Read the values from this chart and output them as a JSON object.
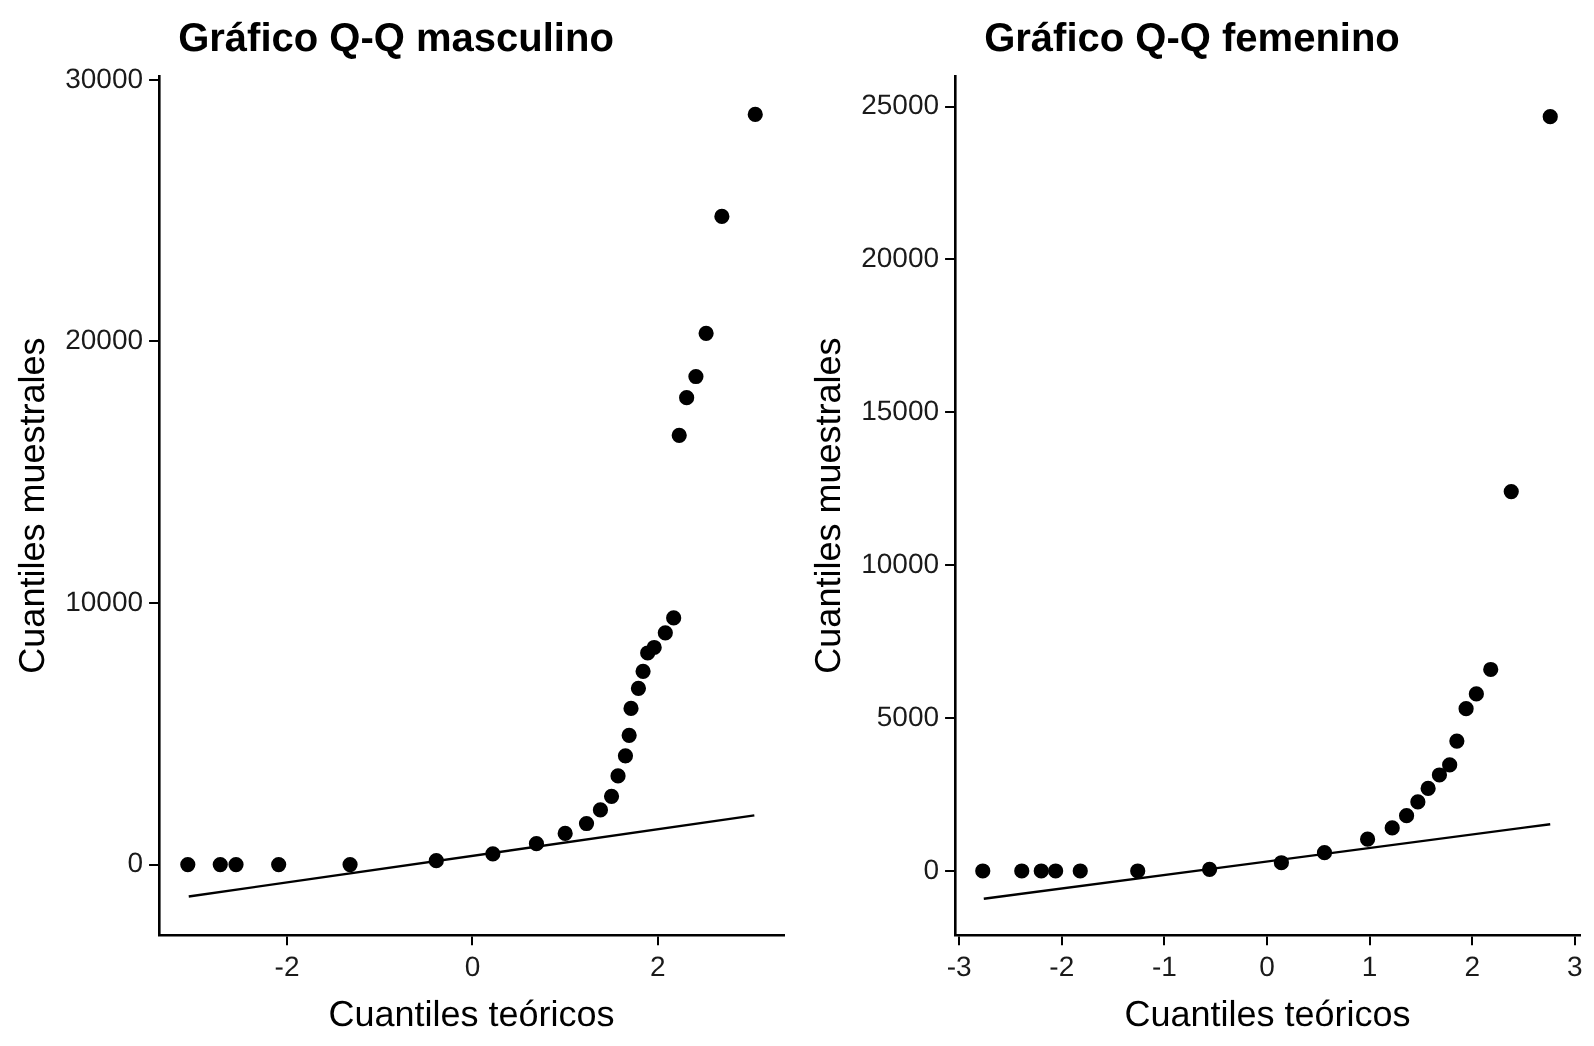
{
  "chart_data": [
    {
      "type": "scatter",
      "title": "Gráfico Q-Q masculino",
      "xlabel": "Cuantiles teóricos",
      "ylabel": "Cuantiles muestrales",
      "xlim": [
        -3.38,
        3.36
      ],
      "xticks": [
        -2,
        0,
        2
      ],
      "ylim": [
        -2700,
        30150
      ],
      "yticks": [
        0,
        10000,
        20000,
        30000
      ],
      "grid": false,
      "legend": false,
      "series": [
        {
          "marker": "circle",
          "color": "#000000",
          "x": [
            -3.07,
            -2.72,
            -2.55,
            -2.09,
            -1.32,
            -0.39,
            0.22,
            0.69,
            1.0,
            1.23,
            1.38,
            1.5,
            1.57,
            1.65,
            1.69,
            1.71,
            1.79,
            1.84,
            1.89,
            1.96,
            2.08,
            2.17,
            2.23,
            2.31,
            2.41,
            2.52,
            2.69,
            3.05
          ],
          "values": [
            0,
            0,
            0,
            0,
            0,
            150,
            410,
            800,
            1190,
            1570,
            2090,
            2610,
            3390,
            4160,
            4940,
            5970,
            6740,
            7390,
            8090,
            8300,
            8860,
            9430,
            16410,
            17850,
            18660,
            20310,
            24780,
            28680
          ]
        },
        {
          "type": "line",
          "marker": "none",
          "color": "#000000",
          "x": [
            -3.06,
            3.04
          ],
          "values": [
            -1220,
            1880
          ]
        }
      ]
    },
    {
      "type": "scatter",
      "title": "Gráfico Q-Q femenino",
      "xlabel": "Cuantiles teóricos",
      "ylabel": "Cuantiles muestrales",
      "xlim": [
        -3.04,
        3.05
      ],
      "xticks": [
        -3,
        -2,
        -1,
        0,
        1,
        2,
        3
      ],
      "ylim": [
        -2100,
        26000
      ],
      "yticks": [
        0,
        5000,
        10000,
        15000,
        20000,
        25000
      ],
      "grid": false,
      "legend": false,
      "series": [
        {
          "marker": "circle",
          "color": "#000000",
          "x": [
            -2.77,
            -2.39,
            -2.2,
            -2.06,
            -1.82,
            -1.26,
            -0.56,
            0.14,
            0.56,
            0.98,
            1.22,
            1.36,
            1.47,
            1.57,
            1.68,
            1.78,
            1.85,
            1.94,
            2.04,
            2.18,
            2.38,
            2.76
          ],
          "values": [
            0,
            0,
            0,
            0,
            0,
            0,
            50,
            270,
            600,
            1040,
            1410,
            1810,
            2260,
            2700,
            3140,
            3470,
            4250,
            5310,
            5790,
            6590,
            12410,
            24670
          ]
        },
        {
          "type": "line",
          "marker": "none",
          "color": "#000000",
          "x": [
            -2.76,
            2.76
          ],
          "values": [
            -910,
            1530
          ]
        }
      ]
    }
  ]
}
